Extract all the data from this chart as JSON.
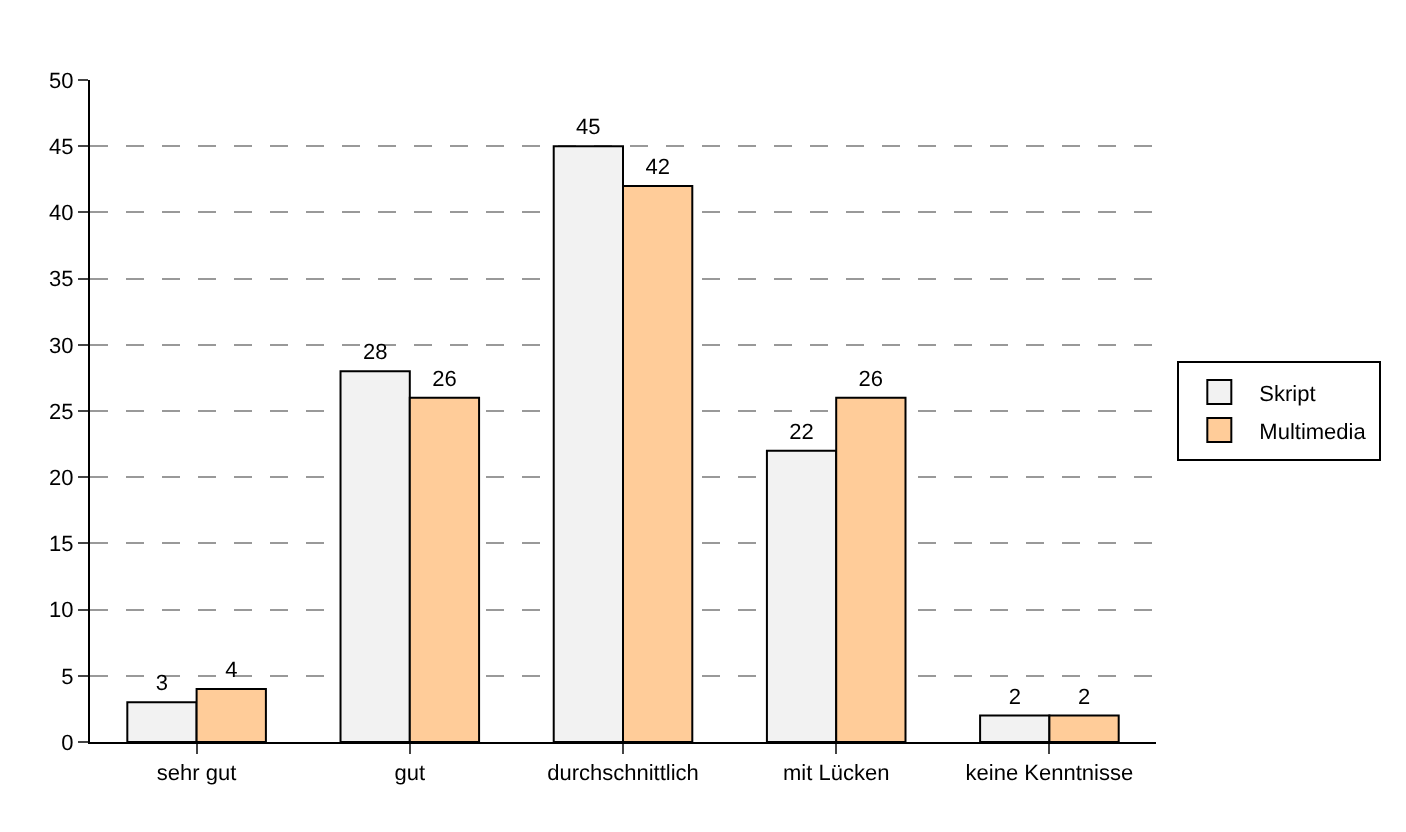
{
  "chart_data": {
    "type": "bar",
    "categories": [
      "sehr gut",
      "gut",
      "durchschnittlich",
      "mit Lücken",
      "keine Kenntnisse"
    ],
    "series": [
      {
        "name": "Skript",
        "color": "#f2f2f2",
        "values": [
          3,
          28,
          45,
          22,
          2
        ]
      },
      {
        "name": "Multimedia",
        "color": "#ffcc99",
        "values": [
          4,
          26,
          42,
          26,
          2
        ]
      }
    ],
    "ylim": [
      0,
      50
    ],
    "yticks": [
      0,
      5,
      10,
      15,
      20,
      25,
      30,
      35,
      40,
      45,
      50
    ],
    "grid": "y",
    "legend": "right",
    "data_labels": true
  }
}
